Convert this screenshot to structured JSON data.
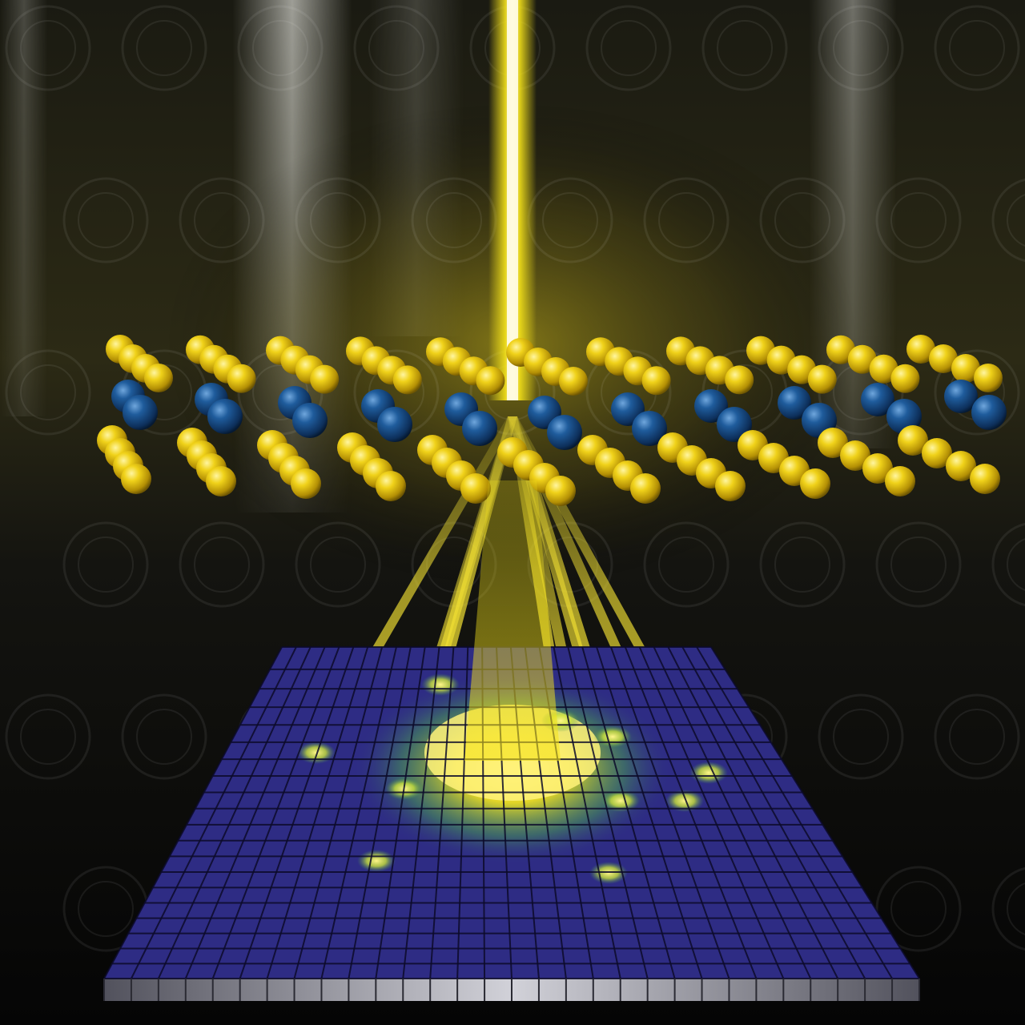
{
  "scene": {
    "subject": "electron-beam-through-crystal-lattice-onto-pixel-detector",
    "background": {
      "colors": [
        "#0a0a0a",
        "#2b2a14",
        "#d9d9d2"
      ]
    },
    "beam": {
      "color": "#f4e21a",
      "core_color": "#fffbe0"
    },
    "lattice": {
      "top_atom_color": "#f0d21a",
      "middle_atom_color": "#1f5c9c",
      "rows": 11,
      "atoms_per_row": 4
    },
    "diffracted_beams": {
      "count": 10,
      "color": "#f2e033"
    },
    "detector": {
      "columns": 30,
      "rows": 20,
      "tile_color": "#2e2c84",
      "edge_color": "#c9c9d6",
      "glow_color": "#f7e81d",
      "spot_color": "#c9e23a"
    },
    "watermark": {
      "motif": "circular-seal-pattern",
      "opacity": 0.07
    }
  }
}
